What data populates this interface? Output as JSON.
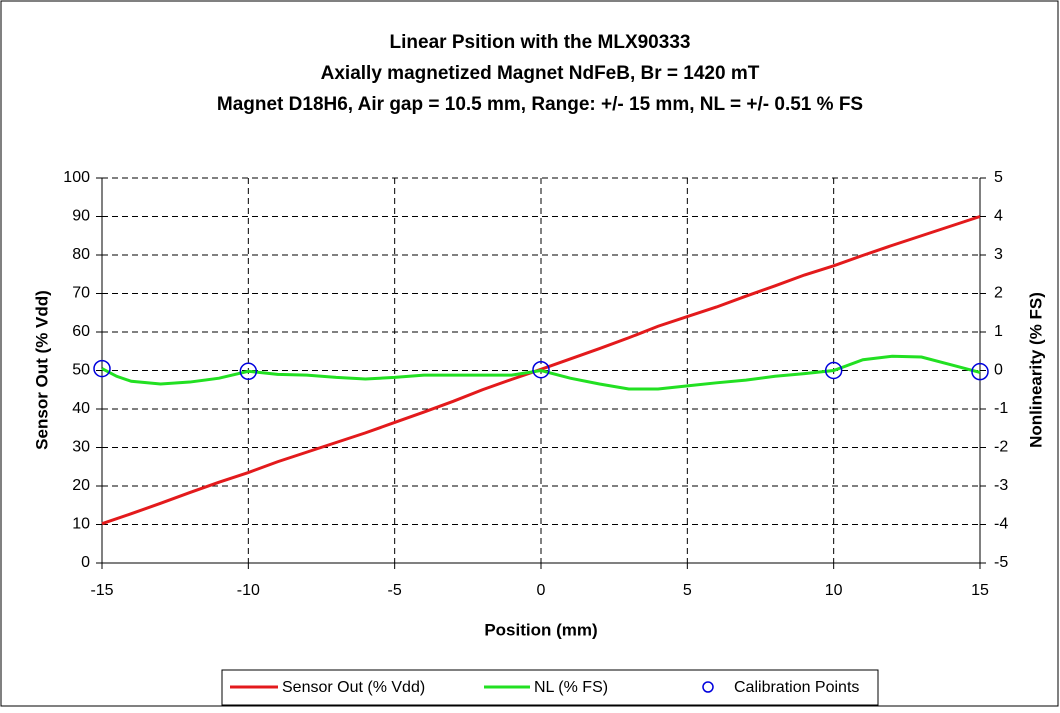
{
  "chart_data": {
    "type": "line",
    "title": [
      "Linear Psition with the MLX90333",
      "Axially magnetized Magnet NdFeB, Br = 1420 mT",
      "Magnet D18H6, Air gap = 10.5 mm, Range: +/- 15 mm, NL = +/- 0.51 % FS"
    ],
    "x_label": "Position (mm)",
    "y_label": "Sensor Out (% Vdd)",
    "y2_label": "Nonlinearity (% FS)",
    "xlim": [
      -15,
      15
    ],
    "xticks": [
      -15,
      -10,
      -5,
      0,
      5,
      10,
      15
    ],
    "ylim": [
      0,
      100
    ],
    "yticks": [
      0,
      10,
      20,
      30,
      40,
      50,
      60,
      70,
      80,
      90,
      100
    ],
    "y2lim": [
      -5,
      5
    ],
    "y2ticks": [
      -5,
      -4,
      -3,
      -2,
      -1,
      0,
      1,
      2,
      3,
      4,
      5
    ],
    "grid": true,
    "legend": "bottom",
    "series": [
      {
        "name": "Sensor Out (% Vdd)",
        "color": "#e31a1c",
        "style": "line",
        "x": [
          -15,
          -14,
          -13,
          -12,
          -11,
          -10,
          -9,
          -8,
          -7,
          -6,
          -5,
          -4,
          -3,
          -2,
          -1,
          0,
          1,
          2,
          3,
          4,
          5,
          6,
          7,
          8,
          9,
          10,
          11,
          12,
          13,
          14,
          15
        ],
        "values": [
          10.2,
          12.8,
          15.5,
          18.3,
          21,
          23.5,
          26.3,
          28.8,
          31.3,
          33.8,
          36.5,
          39.2,
          42,
          45,
          47.7,
          50.3,
          53,
          55.7,
          58.5,
          61.5,
          64,
          66.5,
          69.3,
          72,
          74.8,
          77.2,
          79.9,
          82.5,
          85,
          87.5,
          90
        ]
      },
      {
        "name": "NL (% FS)",
        "color": "#22e022",
        "style": "line",
        "axis": "y2",
        "x": [
          -15,
          -14.5,
          -14,
          -13,
          -12,
          -11,
          -10,
          -9,
          -8,
          -7,
          -6,
          -5,
          -4,
          -3,
          -2,
          -1,
          0,
          1,
          2,
          3,
          4,
          5,
          6,
          7,
          8,
          9,
          10,
          11,
          12,
          13,
          14,
          15
        ],
        "values": [
          0.05,
          -0.15,
          -0.28,
          -0.35,
          -0.3,
          -0.2,
          -0.02,
          -0.1,
          -0.12,
          -0.18,
          -0.22,
          -0.18,
          -0.12,
          -0.12,
          -0.12,
          -0.12,
          0,
          -0.2,
          -0.35,
          -0.48,
          -0.48,
          -0.4,
          -0.32,
          -0.25,
          -0.15,
          -0.08,
          0,
          0.28,
          0.37,
          0.35,
          0.15,
          -0.05
        ]
      },
      {
        "name": "Calibration Points",
        "color": "#0000dd",
        "style": "marker",
        "axis": "y2",
        "x": [
          -15,
          -10,
          0,
          10,
          15
        ],
        "values": [
          0.05,
          -0.02,
          0.02,
          0,
          -0.03
        ]
      }
    ]
  }
}
